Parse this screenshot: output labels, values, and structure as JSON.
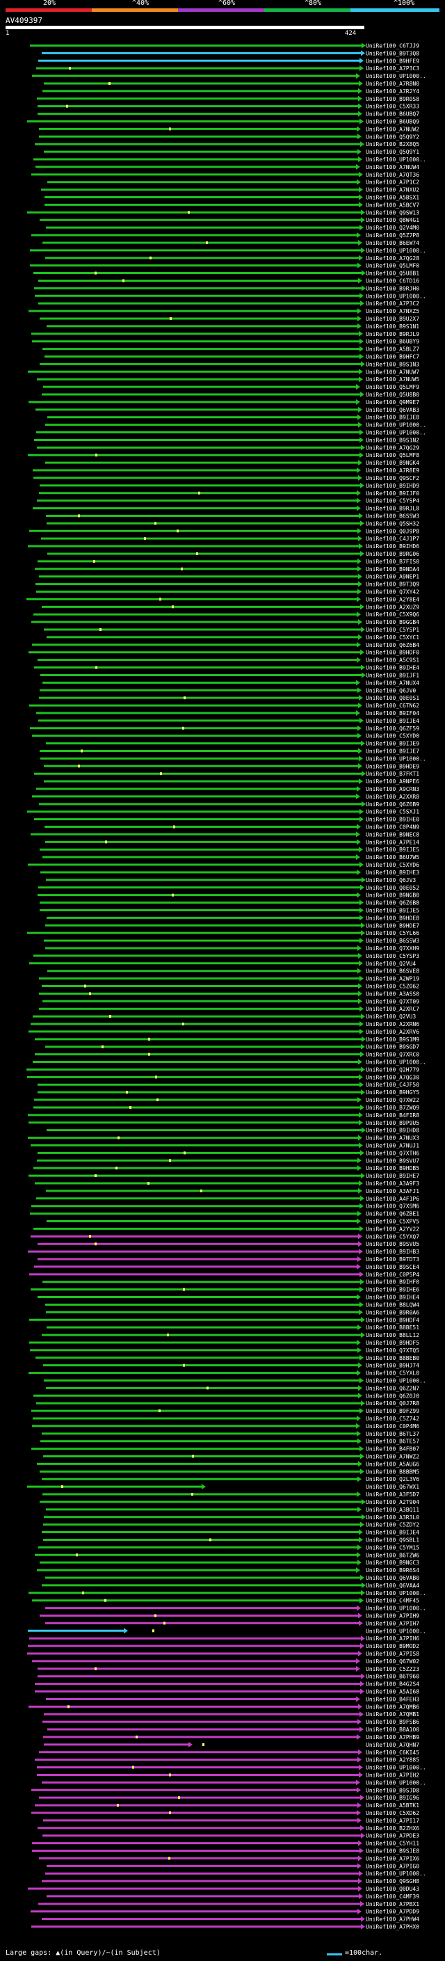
{
  "legend": {
    "labels": [
      "20%",
      "^40%",
      "^60%",
      "^80%",
      "^100%"
    ],
    "colors": [
      "#e1222c",
      "#f08c1e",
      "#a03ac8",
      "#16b24a",
      "#35c7f0"
    ]
  },
  "query": {
    "name": "AV409397",
    "start": "1",
    "end": "424"
  },
  "hits": {
    "labels": [
      "UniRef100_C6TJJ9",
      "UniRef100_B9T3Q8",
      "UniRef100_B9HFE9",
      "UniRef100_A7P3C3",
      "UniRef100_UP1000..",
      "UniRef100_A7R8N0",
      "UniRef100_A7R2Y4",
      "UniRef100_B9R0S8",
      "UniRef100_C5XR33",
      "UniRef100_B6UBQ7",
      "UniRef100_B6UBQ9",
      "UniRef100_A7NUW2",
      "UniRef100_Q5Q9Y2",
      "UniRef100_B2X8Q5",
      "UniRef100_Q5Q9Y1",
      "UniRef100_UP1000..",
      "UniRef100_A7NUW4",
      "UniRef100_A7QT36",
      "UniRef100_A7P1C2",
      "UniRef100_A7NXU2",
      "UniRef100_A5BSX1",
      "UniRef100_A5BCV7",
      "UniRef100_Q9SW13",
      "UniRef100_Q8W4G1",
      "UniRef100_Q2V4M0",
      "UniRef100_Q5Z7P8",
      "UniRef100_B6EW74",
      "UniRef100_UP1000..",
      "UniRef100_A7QG28",
      "UniRef100_Q5LMF0",
      "UniRef100_Q5U8B1",
      "UniRef100_C6TD16",
      "UniRef100_B9RJH0",
      "UniRef100_UP1000..",
      "UniRef100_A7P3C2",
      "UniRef100_A7NXZ5",
      "UniRef100_B9U2X7",
      "UniRef100_B9S1N1",
      "UniRef100_B9RJL9",
      "UniRef100_B6UBY9",
      "UniRef100_A5BLZ7",
      "UniRef100_B9HFC7",
      "UniRef100_B9S1N3",
      "UniRef100_A7NUW7",
      "UniRef100_A7NUW5",
      "UniRef100_Q5LMF9",
      "UniRef100_Q5U8B0",
      "UniRef100_Q9M9E7",
      "UniRef100_Q6VAB3",
      "UniRef100_B9IJE8",
      "UniRef100_UP1000..",
      "UniRef100_UP1000..",
      "UniRef100_B9S1N2",
      "UniRef100_A7QG29",
      "UniRef100_Q5LMF8",
      "UniRef100_B9NGK4",
      "UniRef100_A7R8E9",
      "UniRef100_Q9SCF2",
      "UniRef100_B9IHD9",
      "UniRef100_B9IJF0",
      "UniRef100_C5YSP4",
      "UniRef100_B9RJL8",
      "UniRef100_B6SSW3",
      "UniRef100_Q5SH32",
      "UniRef100_Q0J9P8",
      "UniRef100_C4J1P7",
      "UniRef100_B9IHD6",
      "UniRef100_B9RG06",
      "UniRef100_B7FIS0",
      "UniRef100_B9NDA4",
      "UniRef100_A9NEP1",
      "UniRef100_B9T3Q9",
      "UniRef100_Q7XY42",
      "UniRef100_A2Y8E4",
      "UniRef100_A2XUZ9",
      "UniRef100_C5X9Q6",
      "UniRef100_B9GGB4",
      "UniRef100_C5YSP1",
      "UniRef100_C5XYC1",
      "UniRef100_Q6Z6B4",
      "UniRef100_B9HDF0",
      "UniRef100_A5C9S1",
      "UniRef100_B9IHE4",
      "UniRef100_B9IJF1",
      "UniRef100_A7NUX4",
      "UniRef100_Q6JV0",
      "UniRef100_Q0E0S1",
      "UniRef100_C6TN62",
      "UniRef100_B9IF04",
      "UniRef100_B9IJE4",
      "UniRef100_Q6ZF59",
      "UniRef100_C5XYD0",
      "UniRef100_B9IJE9",
      "UniRef100_B9IJE7",
      "UniRef100_UP1000..",
      "UniRef100_B9HDE9",
      "UniRef100_B7FKT1",
      "UniRef100_A9NPE6",
      "UniRef100_A9CRN3",
      "UniRef100_A2XXR8",
      "UniRef100_Q6Z6B9",
      "UniRef100_C5SXJ1",
      "UniRef100_B9IHE0",
      "UniRef100_C0P4N9",
      "UniRef100_B9NEC8",
      "UniRef100_A7PE14",
      "UniRef100_B9IJE5",
      "UniRef100_B6U7W5",
      "UniRef100_C5XYD6",
      "UniRef100_B9IHE3",
      "UniRef100_Q6JV3",
      "UniRef100_Q0E052",
      "UniRef100_B9NGB0",
      "UniRef100_Q6Z6B8",
      "UniRef100_B9IJE5",
      "UniRef100_B9HDE8",
      "UniRef100_B9HDE7",
      "UniRef100_C5YL66",
      "UniRef100_B6SSW3",
      "UniRef100_Q7XXH9",
      "UniRef100_C5YSP3",
      "UniRef100_Q2VU4",
      "UniRef100_B6SVE8",
      "UniRef100_A2WP19",
      "UniRef100_C5Z062",
      "UniRef100_A3ASS0",
      "UniRef100_Q7XT09",
      "UniRef100_A2XRC7",
      "UniRef100_Q2VU3",
      "UniRef100_A2XRN6",
      "UniRef100_A2XRV6",
      "UniRef100_B9S1M9",
      "UniRef100_B9SGD7",
      "UniRef100_Q7XRC0",
      "UniRef100_UP1000..",
      "UniRef100_Q2H779",
      "UniRef100_A7QG30",
      "UniRef100_C4JF50",
      "UniRef100_B9HGY5",
      "UniRef100_Q7XW22",
      "UniRef100_B7ZWQ9",
      "UniRef100_B4FIR8",
      "UniRef100_B9P9U5",
      "UniRef100_B9IHD8",
      "UniRef100_A7NUX3",
      "UniRef100_A7NUJ1",
      "UniRef100_Q7XTH6",
      "UniRef100_B9SVU7",
      "UniRef100_B9HDB5",
      "UniRef100_B9IHE7",
      "UniRef100_A3A9F3",
      "UniRef100_A3AFJ1",
      "UniRef100_A4F1P6",
      "UniRef100_Q7XSM6",
      "UniRef100_Q6ZBE1",
      "UniRef100_C5XPV5",
      "UniRef100_A2YV22",
      "UniRef100_C5YXQ7",
      "UniRef100_B9SVU5",
      "UniRef100_B9IHB3",
      "UniRef100_B9TDT3",
      "UniRef100_B9SCE4",
      "UniRef100_C0P5P4",
      "UniRef100_B9IHF0",
      "UniRef100_B9IHE6",
      "UniRef100_B9IHE4",
      "UniRef100_B8LQW4",
      "UniRef100_B9R0A6",
      "UniRef100_B9HDF4",
      "UniRef100_B8BE51",
      "UniRef100_B8LL12",
      "UniRef100_B9HDF5",
      "UniRef100_Q7XTQ5",
      "UniRef100_B8BEB0",
      "UniRef100_B9HJ74",
      "UniRef100_C5YXL0",
      "UniRef100_UP1000..",
      "UniRef100_Q6Z2N7",
      "UniRef100_Q6Z0J0",
      "UniRef100_Q0J7R8",
      "UniRef100_B9FZ99",
      "UniRef100_C5Z742",
      "UniRef100_C0P4M6",
      "UniRef100_B6TL37",
      "UniRef100_B6TE57",
      "UniRef100_B4FB07",
      "UniRef100_A7NWZ2",
      "UniRef100_A5AUG6",
      "UniRef100_B8BBM5",
      "UniRef100_Q2L3V6",
      "UniRef100_Q67WX1",
      "UniRef100_A3F5D7",
      "UniRef100_A2T904",
      "UniRef100_A3BQ11",
      "UniRef100_A3R3L0",
      "UniRef100_C5ZDY2",
      "UniRef100_B9IJE4",
      "UniRef100_Q9SBL1",
      "UniRef100_C5YM15",
      "UniRef100_B6TZW6",
      "UniRef100_B9NGC3",
      "UniRef100_B9R6S4",
      "UniRef100_Q6VAB0",
      "UniRef100_Q6VAA4",
      "UniRef100_UP1000..",
      "UniRef100_C4MF45",
      "UniRef100_UP1000..",
      "UniRef100_A7PIH9",
      "UniRef100_A7PIH7",
      "UniRef100_UP1000..",
      "UniRef100_A7PIH6",
      "UniRef100_B9MOD2",
      "UniRef100_A7PIS8",
      "UniRef100_Q67W02",
      "UniRef100_C5ZZ23",
      "UniRef100_B6T960",
      "UniRef100_B4G2S4",
      "UniRef100_A5AI68",
      "UniRef100_B4FEH3",
      "UniRef100_A7QMB6",
      "UniRef100_A7QMB1",
      "UniRef100_B9FSB6",
      "UniRef100_B8A1O0",
      "UniRef100_A7PHB9",
      "UniRef100_A7QHN7",
      "UniRef100_C6KI45",
      "UniRef100_A2Y885",
      "UniRef100_UP1000..",
      "UniRef100_A7PIH2",
      "UniRef100_UP1000..",
      "UniRef100_B9SJD8",
      "UniRef100_B9IG96",
      "UniRef100_A5BTK1",
      "UniRef100_C5XD62",
      "UniRef100_A7PI17",
      "UniRef100_B2ZHX6",
      "UniRef100_A7PDE3",
      "UniRef100_C5YH11",
      "UniRef100_B9SJE8",
      "UniRef100_A7PIX6",
      "UniRef100_A7PIG0",
      "UniRef100_UP1000..",
      "UniRef100_Q9SGH8",
      "UniRef100_Q0DU43",
      "UniRef100_C4MF39",
      "UniRef100_A7PBX1",
      "UniRef100_A7PDD9",
      "UniRef100_A7PHW4",
      "UniRef100_A7PHX0"
    ],
    "colors": {
      "green": "#1fc21f",
      "cyan": "#35c7f0",
      "magenta": "#c43cc4",
      "line_dark": "#0a2a0a",
      "mark": "#ffff66"
    }
  },
  "footer": {
    "gap_note": "Large gaps: ▲(in Query)/~(in Subject)",
    "scale_label": "=100char."
  }
}
